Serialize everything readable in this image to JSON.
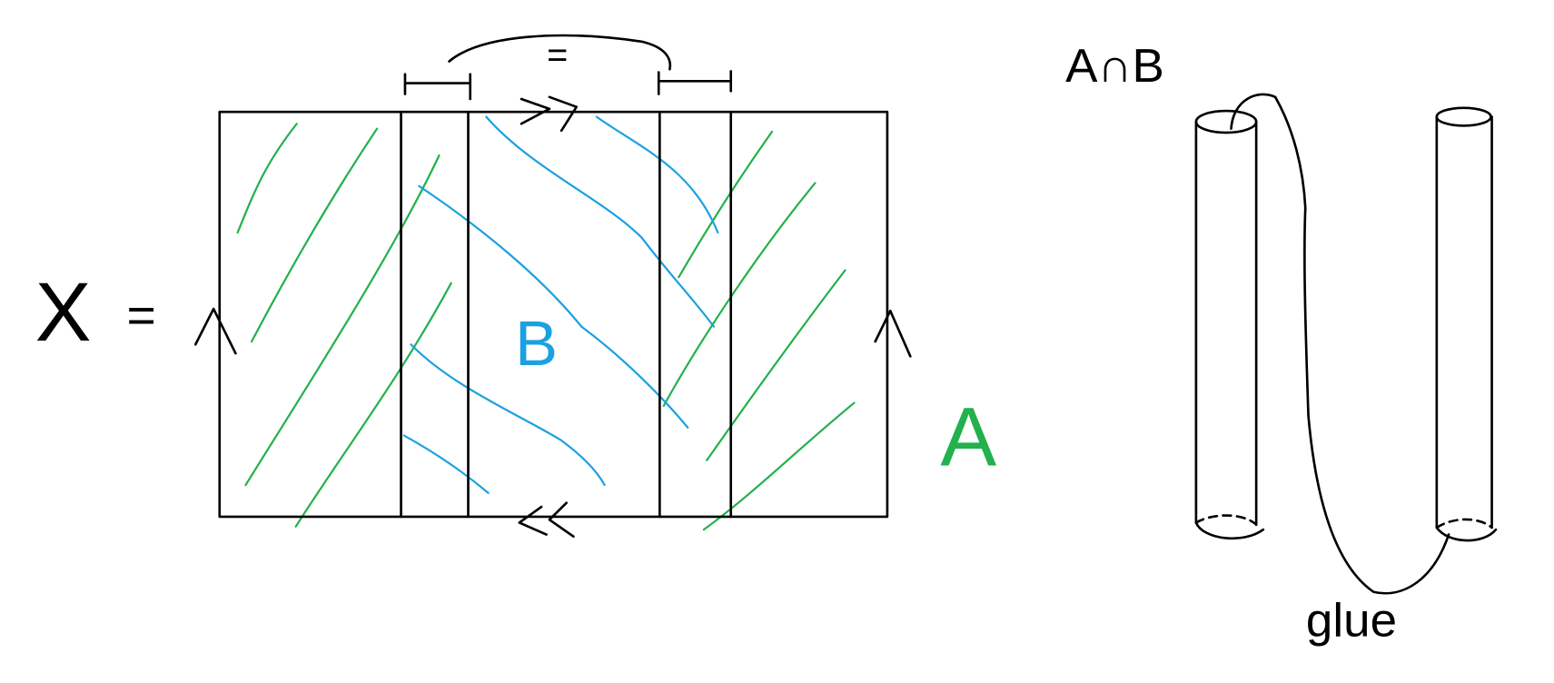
{
  "labels": {
    "x": "X",
    "equals": "=",
    "gluing_equals": "=",
    "b": "B",
    "a": "A",
    "intersection": "A∩B",
    "glue": "glue"
  }
}
